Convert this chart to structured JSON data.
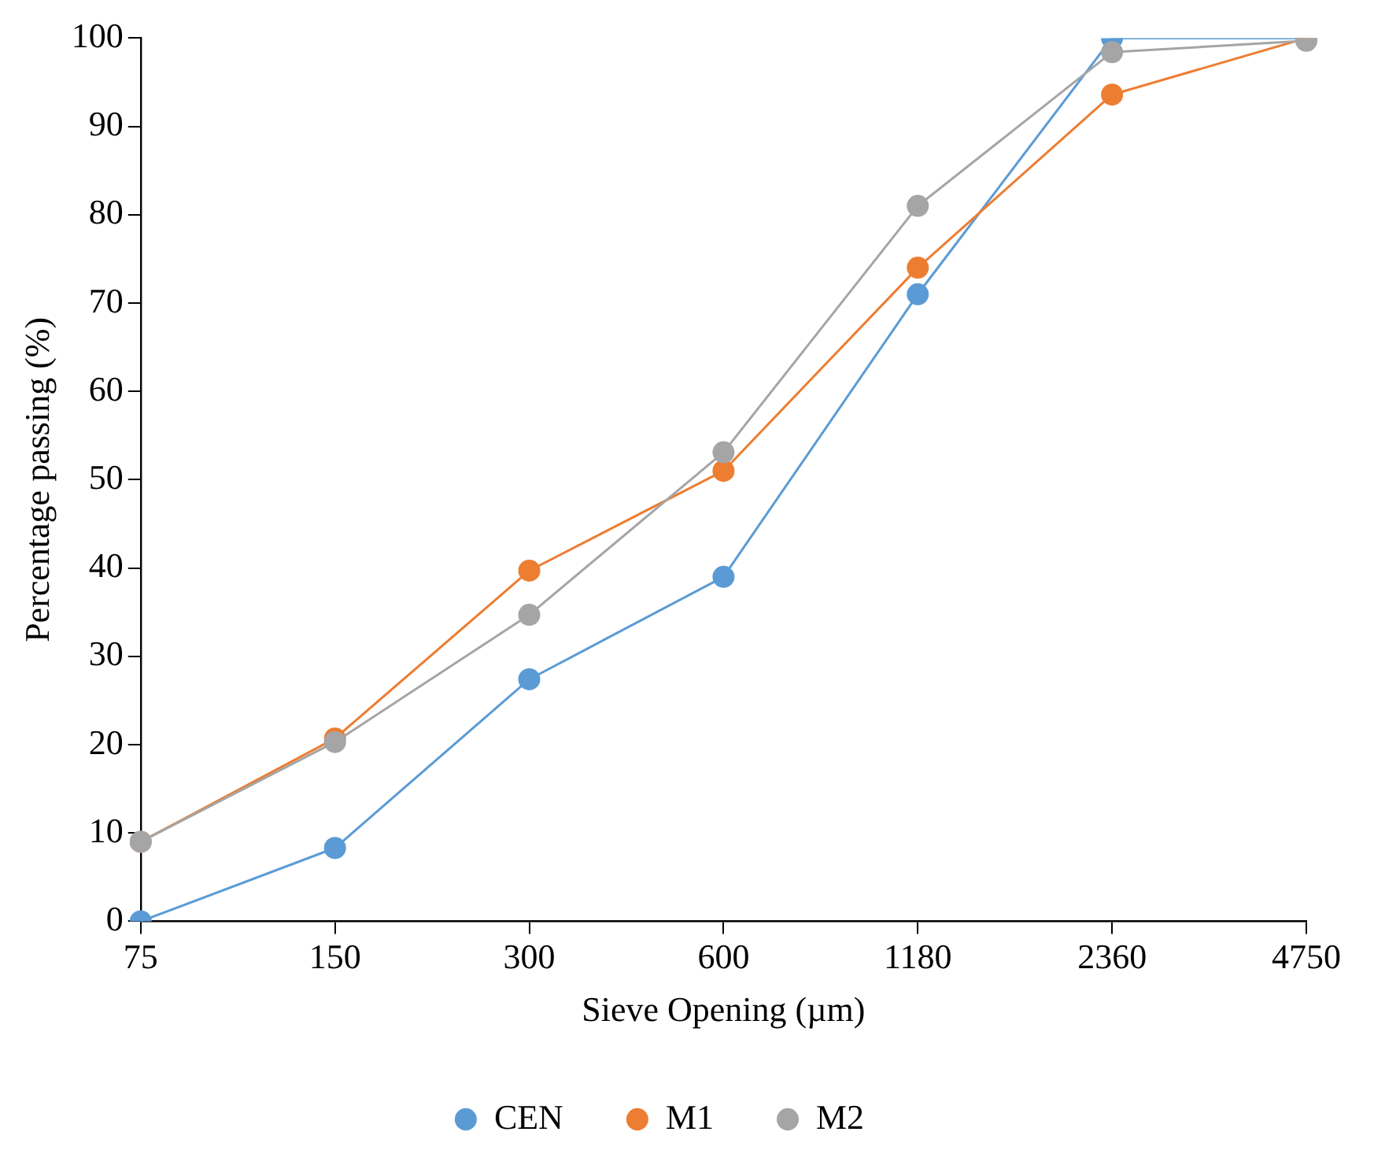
{
  "chart_data": {
    "type": "line",
    "xlabel": "Sieve Opening (µm)",
    "ylabel": "Percentage passing (%)",
    "categories": [
      "75",
      "150",
      "300",
      "600",
      "1180",
      "2360",
      "4750"
    ],
    "series": [
      {
        "name": "CEN",
        "color": "#5b9bd5",
        "values": [
          0,
          8.3,
          27.4,
          39,
          71,
          100,
          100
        ]
      },
      {
        "name": "M1",
        "color": "#ed7d31",
        "values": [
          9,
          20.7,
          39.7,
          51,
          74,
          93.6,
          100
        ]
      },
      {
        "name": "M2",
        "color": "#a5a5a5",
        "values": [
          9,
          20.3,
          34.7,
          53.1,
          81,
          98.4,
          99.7
        ]
      }
    ],
    "ylim": [
      0,
      100
    ],
    "yticks": [
      0,
      10,
      20,
      30,
      40,
      50,
      60,
      70,
      80,
      90,
      100
    ],
    "grid": false,
    "legend": "bottom",
    "marker": "circle",
    "line_style": "solid"
  }
}
